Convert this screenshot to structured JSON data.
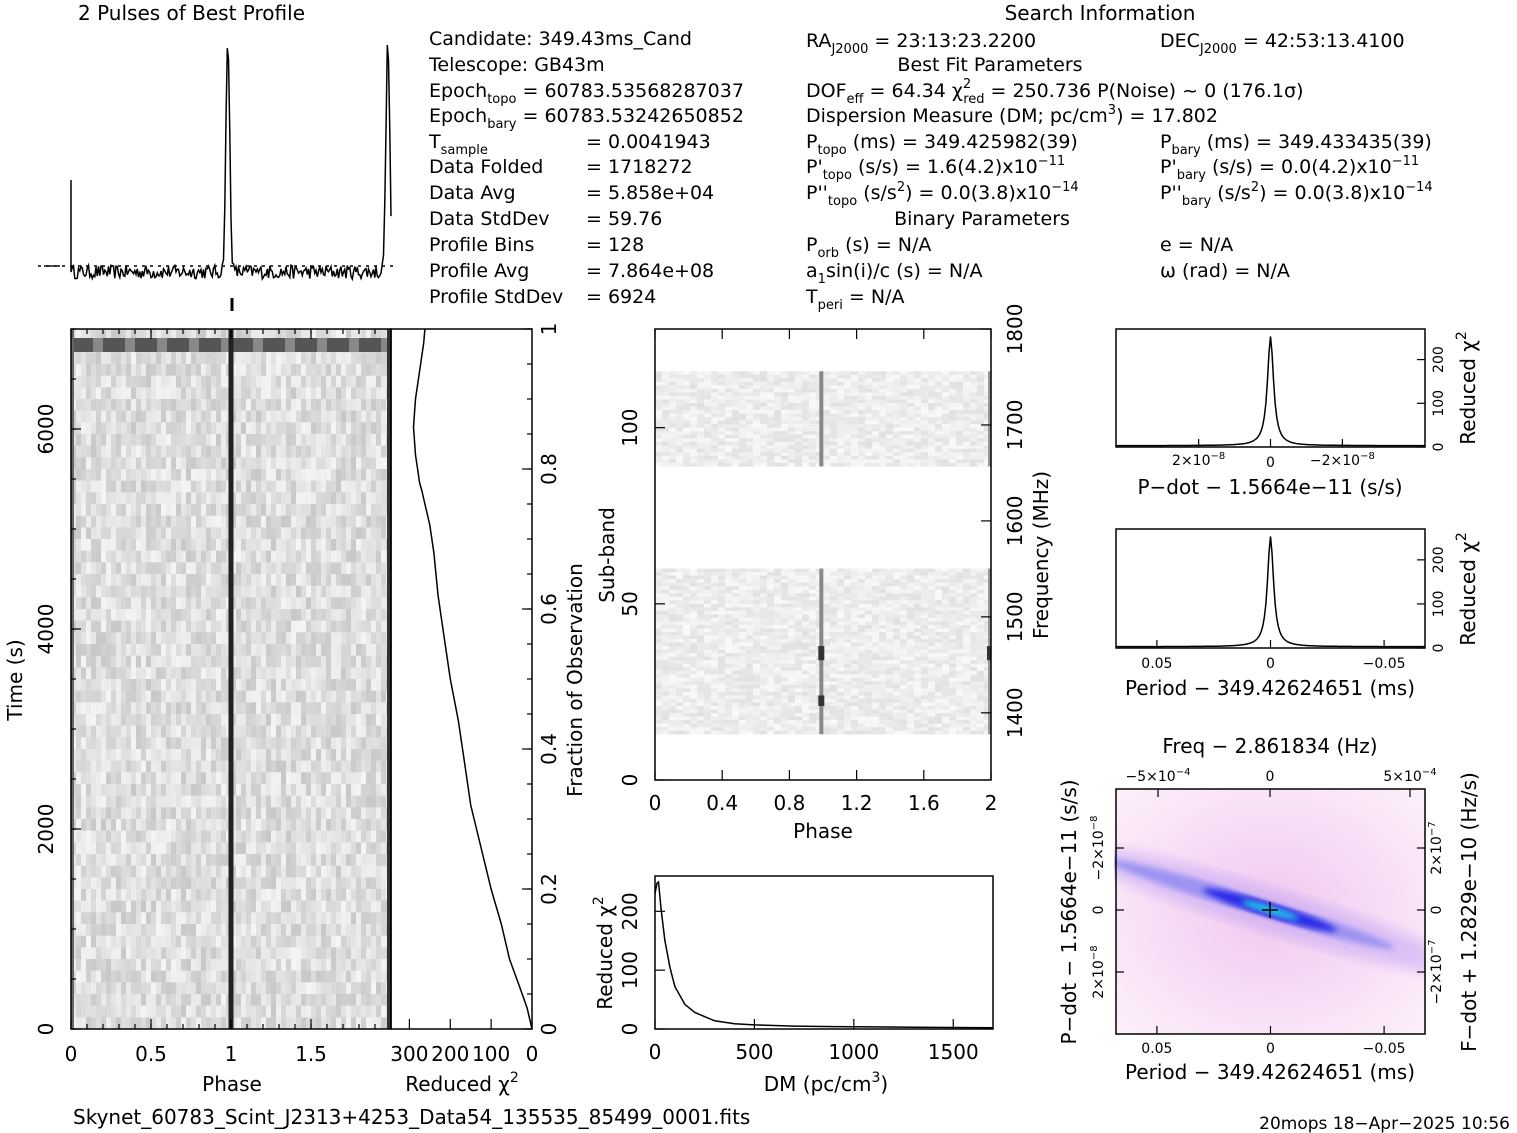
{
  "profile": {
    "title": "2 Pulses of Best Profile"
  },
  "search_info": {
    "title": "Search Information",
    "col1": [
      {
        "label": "Candidate:  349.43ms_Cand"
      },
      {
        "label": "Telescope:  GB43m"
      },
      {
        "label": "Epoch",
        "sub": "topo",
        "rest": " = 60783.53568287037"
      },
      {
        "label": "Epoch",
        "sub": "bary",
        "rest": " = 60783.53242650852"
      },
      {
        "label": "T",
        "sub": "sample",
        "rest": "",
        "value": "=  0.0041943"
      },
      {
        "label": "Data Folded",
        "value": "=  1718272"
      },
      {
        "label": "Data Avg",
        "value": "=  5.858e+04"
      },
      {
        "label": "Data StdDev",
        "value": "=  59.76"
      },
      {
        "label": "Profile Bins",
        "value": "=  128"
      },
      {
        "label": "Profile Avg",
        "value": "=  7.864e+08"
      },
      {
        "label": "Profile StdDev",
        "value": "=  6924"
      }
    ],
    "ra": "RA",
    "ra_sub": "J2000",
    "ra_val": " = 23:13:23.2200",
    "dec": "DEC",
    "dec_sub": "J2000",
    "dec_val": " = 42:53:13.4100",
    "best_fit_title": "Best Fit Parameters",
    "dof": "DOF",
    "dof_sub": "eff",
    "dof_val": " = 64.34  χ",
    "chi_sup": "2",
    "chi_sub": "red",
    "chi_val": " = 250.736  P(Noise) ~ 0   (176.1σ)",
    "dm_line": "Dispersion Measure (DM; pc/cm",
    "dm_sup": "3",
    "dm_val": ") = 17.802",
    "p_topo_l": "P",
    "p_topo_sub": "topo",
    "p_topo_val": " (ms) =  349.425982(39)",
    "p_bary_l": "P",
    "p_bary_sub": "bary",
    "p_bary_val": " (ms) =  349.433435(39)",
    "pd_topo_l": "P'",
    "pd_topo_sub": "topo",
    "pd_topo_val": " (s/s) =  1.6(4.2)x10",
    "pd_topo_exp": "−11",
    "pd_bary_l": "P'",
    "pd_bary_sub": "bary",
    "pd_bary_val": " (s/s) = 0.0(4.2)x10",
    "pd_bary_exp": "−11",
    "pdd_topo_l": "P''",
    "pdd_topo_sub": "topo",
    "pdd_topo_val": " (s/s",
    "pdd_topo_val2": ") = 0.0(3.8)x10",
    "pdd_topo_exp": "−14",
    "pdd_bary_l": "P''",
    "pdd_bary_sub": "bary",
    "pdd_bary_val": " (s/s",
    "pdd_bary_val2": ") = 0.0(3.8)x10",
    "pdd_bary_exp": "−14",
    "binary_title": "Binary Parameters",
    "porb_l": "P",
    "porb_sub": "orb",
    "porb_val": " (s) = N/A",
    "a1_l": "a",
    "a1_sub": "1",
    "a1_val": "sin(i)/c (s) = N/A",
    "tperi_l": "T",
    "tperi_sub": "peri",
    "tperi_val": " = N/A",
    "e_line": "e = N/A",
    "omega_line": "ω (rad) = N/A"
  },
  "footer": {
    "filename": "Skynet_60783_Scint_J2313+4253_Data54_135535_85499_0001.fits",
    "stamp": "20mops 18−Apr−2025 10:56"
  },
  "chart_data": [
    {
      "id": "pulse_profile",
      "type": "line",
      "title": "2 Pulses of Best Profile",
      "x_range": [
        0,
        2
      ],
      "peak_phases": [
        0.98,
        1.98
      ],
      "noise_level": 0.06
    },
    {
      "id": "time_phase",
      "type": "heatmap",
      "xlabel": "Phase",
      "ylabel": "Time (s)",
      "x_ticks": [
        "0",
        "0.5",
        "1",
        "1.5"
      ],
      "y_ticks": [
        "0",
        "2000",
        "4000",
        "6000"
      ],
      "xlim": [
        0,
        2
      ],
      "ylim": [
        0,
        7000
      ],
      "pulse_phase": 1.0,
      "bright_band_time": 6830
    },
    {
      "id": "reduced_chi_vs_time",
      "type": "line",
      "xlabel": "Reduced χ",
      "x_sup": "2",
      "x_ticks": [
        "300",
        "200",
        "100",
        "0"
      ],
      "x_tick_values": [
        300,
        200,
        100,
        0
      ],
      "ylabel": "Fraction of Observation",
      "y_ticks": [
        "0",
        "0.2",
        "0.4",
        "0.6",
        "0.8",
        "1"
      ],
      "xlim": [
        345,
        0
      ],
      "ylim": [
        0,
        1
      ],
      "x": [
        0,
        12,
        30,
        55,
        75,
        100,
        125,
        150,
        165,
        180,
        200,
        215,
        230,
        240,
        250,
        262,
        270,
        275,
        280,
        285,
        290,
        285,
        275,
        265,
        262
      ],
      "y": [
        0,
        0.03,
        0.06,
        0.1,
        0.15,
        0.2,
        0.26,
        0.32,
        0.38,
        0.44,
        0.5,
        0.56,
        0.62,
        0.68,
        0.72,
        0.75,
        0.77,
        0.78,
        0.8,
        0.82,
        0.86,
        0.9,
        0.94,
        0.98,
        1.0
      ]
    },
    {
      "id": "subband_phase",
      "type": "heatmap",
      "xlabel": "Phase",
      "ylabel": "Sub-band",
      "y2label": "Frequency (MHz)",
      "x_ticks": [
        "0",
        "0.4",
        "0.8",
        "1.2",
        "1.6",
        "2"
      ],
      "x_tick_values": [
        0,
        0.4,
        0.8,
        1.2,
        1.6,
        2
      ],
      "y_ticks": [
        "0",
        "50",
        "100"
      ],
      "y_tick_values": [
        0,
        50,
        100
      ],
      "y2_ticks": [
        "1400",
        "1500",
        "1600",
        "1700",
        "1800"
      ],
      "y2_tick_values": [
        1400,
        1500,
        1600,
        1700,
        1800
      ],
      "xlim": [
        0,
        2
      ],
      "ylim": [
        0,
        128
      ],
      "y2lim": [
        1330,
        1800
      ],
      "occupied_bands": [
        [
          13,
          60
        ],
        [
          89,
          116
        ]
      ]
    },
    {
      "id": "dm_curve",
      "type": "line",
      "xlabel": "DM (pc/cm",
      "x_sup": "3",
      "x_close": ")",
      "ylabel": "Reduced χ",
      "y_sup": "2",
      "x_ticks": [
        "0",
        "500",
        "1000",
        "1500"
      ],
      "x_tick_values": [
        0,
        500,
        1000,
        1500
      ],
      "y_ticks": [
        "0",
        "100",
        "200"
      ],
      "y_tick_values": [
        0,
        100,
        200
      ],
      "xlim": [
        0,
        1700
      ],
      "ylim": [
        0,
        260
      ],
      "x": [
        0,
        10,
        17.8,
        30,
        50,
        75,
        100,
        150,
        200,
        300,
        400,
        500,
        700,
        900,
        1100,
        1300,
        1500,
        1700
      ],
      "y": [
        230,
        248,
        250,
        205,
        150,
        105,
        72,
        42,
        28,
        14,
        9,
        7,
        5,
        4,
        3.5,
        3,
        2.5,
        2
      ]
    },
    {
      "id": "pdot_curve",
      "type": "line",
      "xlabel": "P−dot − 1.5664e−11 (s/s)",
      "ylabel": "Reduced χ",
      "y_sup": "2",
      "x_ticks": [
        "2×10",
        "0",
        "−2×10"
      ],
      "x_tick_exp": "−8",
      "x_tick_values": [
        2e-08,
        0,
        -2e-08
      ],
      "y_ticks": [
        "0",
        "100",
        "200"
      ],
      "y_tick_values": [
        0,
        100,
        200
      ],
      "xlim": [
        4.3e-08,
        -4.3e-08
      ],
      "ylim": [
        0,
        270
      ],
      "peak": 250
    },
    {
      "id": "period_curve",
      "type": "line",
      "xlabel": "Period − 349.42624651 (ms)",
      "ylabel": "Reduced χ",
      "y_sup": "2",
      "x_ticks": [
        "0.05",
        "0",
        "−0.05"
      ],
      "x_tick_values": [
        0.05,
        0,
        -0.05
      ],
      "y_ticks": [
        "0",
        "100",
        "200"
      ],
      "y_tick_values": [
        0,
        100,
        200
      ],
      "xlim": [
        0.068,
        -0.068
      ],
      "ylim": [
        0,
        270
      ],
      "peak": 250
    },
    {
      "id": "p_pdot_plane",
      "type": "heatmap",
      "title": "Freq − 2.861834 (Hz)",
      "xlabel": "Period − 349.42624651 (ms)",
      "ylabel": "P−dot − 1.5664e−11 (s/s)",
      "y2label": "F−dot + 1.2829e−10 (Hz/s)",
      "x_ticks": [
        "0.05",
        "0",
        "−0.05"
      ],
      "x_tick_values": [
        0.05,
        0,
        -0.05
      ],
      "top_ticks": [
        "−5×10",
        "0",
        "5×10"
      ],
      "top_tick_exp": "−4",
      "y_ticks": [
        "−2×10",
        "0",
        "2×10"
      ],
      "y_tick_exp": "−8",
      "y2_ticks": [
        "2×10",
        "0",
        "−2×10"
      ],
      "y2_tick_exp": "−7",
      "xlim": [
        0.068,
        -0.068
      ],
      "best": [
        0,
        0
      ]
    }
  ]
}
